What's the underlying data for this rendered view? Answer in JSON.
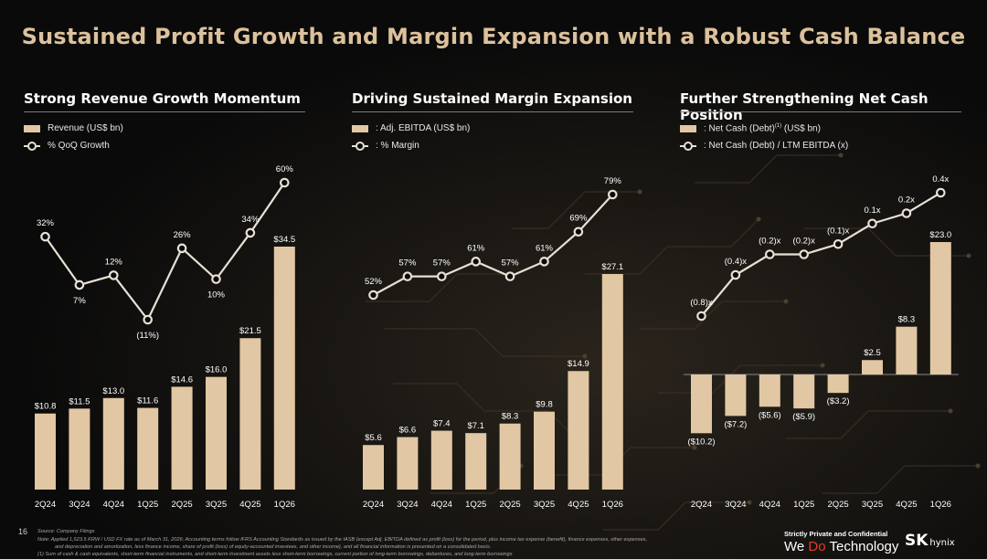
{
  "title": "Sustained Profit Growth and Margin Expansion with a Robust Cash Balance",
  "colors": {
    "bar": "#e1c7a3",
    "line": "#e8e0d4",
    "title": "#dcc19c",
    "background": "#0a0a0a"
  },
  "chart_data": [
    {
      "type": "bar+line",
      "title": "Strong Revenue Growth Momentum",
      "categories": [
        "2Q24",
        "3Q24",
        "4Q24",
        "1Q25",
        "2Q25",
        "3Q25",
        "4Q25",
        "1Q26"
      ],
      "series": [
        {
          "name": "Revenue (US$ bn)",
          "type": "bar",
          "values": [
            10.8,
            11.5,
            13.0,
            11.6,
            14.6,
            16.0,
            21.5,
            34.5
          ],
          "labels": [
            "$10.8",
            "$11.5",
            "$13.0",
            "$11.6",
            "$14.6",
            "$16.0",
            "$21.5",
            "$34.5"
          ]
        },
        {
          "name": "% QoQ Growth",
          "type": "line",
          "values": [
            32,
            7,
            12,
            -11,
            26,
            10,
            34,
            60
          ],
          "labels": [
            "32%",
            "7%",
            "12%",
            "(11%)",
            "26%",
            "10%",
            "34%",
            "60%"
          ]
        }
      ]
    },
    {
      "type": "bar+line",
      "title": "Driving Sustained Margin Expansion",
      "categories": [
        "2Q24",
        "3Q24",
        "4Q24",
        "1Q25",
        "2Q25",
        "3Q25",
        "4Q25",
        "1Q26"
      ],
      "series": [
        {
          "name": ": Adj. EBITDA (US$ bn)",
          "type": "bar",
          "values": [
            5.6,
            6.6,
            7.4,
            7.1,
            8.3,
            9.8,
            14.9,
            27.1
          ],
          "labels": [
            "$5.6",
            "$6.6",
            "$7.4",
            "$7.1",
            "$8.3",
            "$9.8",
            "$14.9",
            "$27.1"
          ]
        },
        {
          "name": ": % Margin",
          "type": "line",
          "values": [
            52,
            57,
            57,
            61,
            57,
            61,
            69,
            79
          ],
          "labels": [
            "52%",
            "57%",
            "57%",
            "61%",
            "57%",
            "61%",
            "69%",
            "79%"
          ]
        }
      ]
    },
    {
      "type": "bar+line",
      "title": "Further Strengthening Net Cash Position",
      "categories": [
        "2Q24",
        "3Q24",
        "4Q24",
        "1Q25",
        "2Q25",
        "3Q25",
        "4Q25",
        "1Q26"
      ],
      "series": [
        {
          "name": ": Net Cash (Debt)",
          "name_sup": "(1)",
          "name_suffix": " (US$ bn)",
          "type": "bar",
          "values": [
            -10.2,
            -7.2,
            -5.6,
            -5.9,
            -3.2,
            2.5,
            8.3,
            23.0
          ],
          "labels": [
            "($10.2)",
            "($7.2)",
            "($5.6)",
            "($5.9)",
            "($3.2)",
            "$2.5",
            "$8.3",
            "$23.0"
          ]
        },
        {
          "name": ": Net Cash (Debt) / LTM EBITDA (x)",
          "type": "line",
          "values": [
            -0.8,
            -0.4,
            -0.2,
            -0.2,
            -0.1,
            0.1,
            0.2,
            0.4
          ],
          "labels": [
            "(0.8)x",
            "(0.4)x",
            "(0.2)x",
            "(0.2)x",
            "(0.1)x",
            "0.1x",
            "0.2x",
            "0.4x"
          ]
        }
      ]
    }
  ],
  "footer": {
    "page_number": "16",
    "source": "Source: Company Filings",
    "note1": "Note: Applied 1,523.5 KRW / USD FX rate as of March 31, 2026; Accounting terms follow IFRS Accounting Standards as issued by the IASB (except Adj. EBITDA defined as profit (loss) for the period, plus income tax expense (benefit), finance expenses, other expenses,",
    "note2": "and depreciation and amortization, less finance income, share of profit (loss) of equity-accounted investees, and other income), and all financial information is presented on a consolidated basis.",
    "note3": "(1)      Sum of cash & cash equivalents, short-term financial instruments, and short-term investment assets less short-term borrowings, current portion of long-term borrowings, debentures, and long-term borrowings",
    "confidential": "Strictly Private and Confidential",
    "tagline_a": "We ",
    "tagline_hl": "Do",
    "tagline_b": " Technology",
    "logo_sk": "SK",
    "logo_hynix": "hynix"
  }
}
